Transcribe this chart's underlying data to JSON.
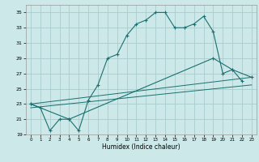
{
  "xlabel": "Humidex (Indice chaleur)",
  "bg_color": "#cce8e8",
  "grid_color": "#aacccc",
  "line_color": "#1a7070",
  "xlim": [
    -0.5,
    23.5
  ],
  "ylim": [
    19,
    36
  ],
  "xticks": [
    0,
    1,
    2,
    3,
    4,
    5,
    6,
    7,
    8,
    9,
    10,
    11,
    12,
    13,
    14,
    15,
    16,
    17,
    18,
    19,
    20,
    21,
    22,
    23
  ],
  "yticks": [
    19,
    21,
    23,
    25,
    27,
    29,
    31,
    33,
    35
  ],
  "line1_x": [
    0,
    1,
    2,
    3,
    4,
    5,
    6,
    7,
    8,
    9,
    10,
    11,
    12,
    13,
    14,
    15,
    16,
    17,
    18,
    19,
    20,
    21,
    22
  ],
  "line1_y": [
    23,
    22.5,
    19.5,
    21,
    21,
    19.5,
    23.5,
    25.5,
    29,
    29.5,
    32,
    33.5,
    34,
    35,
    35,
    33,
    33,
    33.5,
    34.5,
    32.5,
    27,
    27.5,
    26
  ],
  "line2_x": [
    0,
    4,
    19,
    21,
    23
  ],
  "line2_y": [
    23,
    21,
    29,
    27.5,
    26.5
  ],
  "line3_x": [
    0,
    23
  ],
  "line3_y": [
    23,
    26.5
  ],
  "line4_x": [
    0,
    23
  ],
  "line4_y": [
    22.5,
    25.5
  ]
}
